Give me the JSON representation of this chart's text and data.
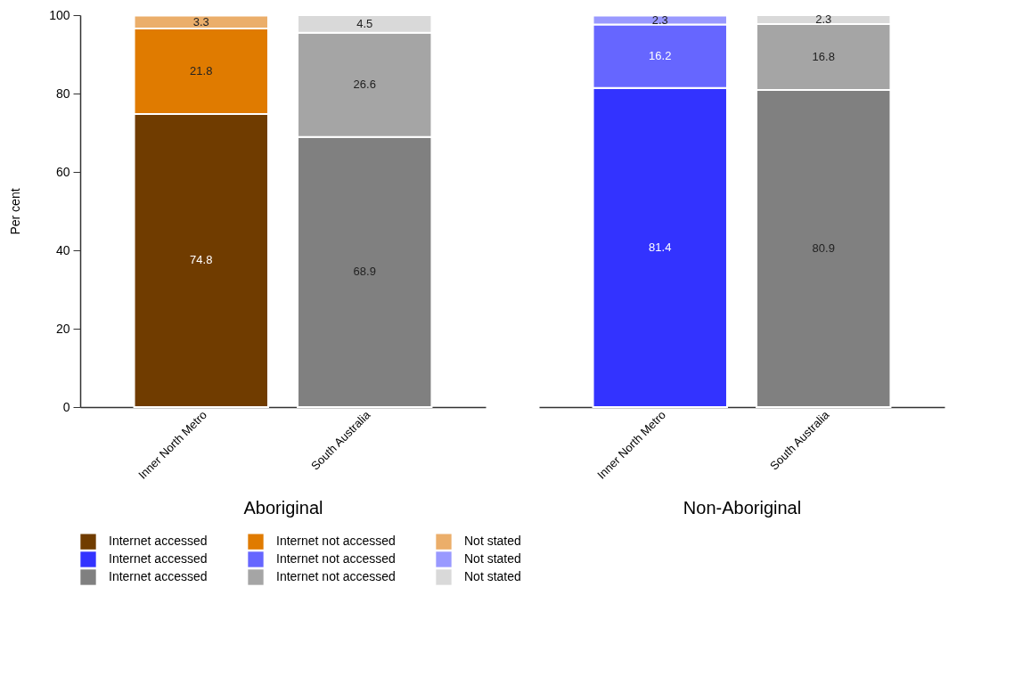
{
  "chart_data": [
    {
      "type": "bar",
      "stacked": true,
      "categories": [
        "Inner North Metro",
        "South Australia"
      ],
      "xlabel": "Aboriginal",
      "ylabel": "Per cent",
      "ylim": [
        0,
        100
      ],
      "yticks": [
        0,
        20,
        40,
        60,
        80,
        100
      ],
      "grid": false,
      "legend": "bottom",
      "data_labels": true,
      "series": [
        {
          "name": "Internet accessed",
          "color": "#703c00",
          "values": [
            74.8,
            null
          ]
        },
        {
          "name": "Internet not accessed",
          "color": "#e07b00",
          "values": [
            21.8,
            null
          ]
        },
        {
          "name": "Not stated",
          "color": "#ebae6a",
          "values": [
            3.3,
            null
          ]
        },
        {
          "name": "Internet accessed",
          "color": "#808080",
          "values": [
            null,
            68.9
          ]
        },
        {
          "name": "Internet not accessed",
          "color": "#a5a5a5",
          "values": [
            null,
            26.6
          ]
        },
        {
          "name": "Not stated",
          "color": "#d9d9d9",
          "values": [
            null,
            4.5
          ]
        }
      ]
    },
    {
      "type": "bar",
      "stacked": true,
      "categories": [
        "Inner North Metro",
        "South Australia"
      ],
      "xlabel": "Non-Aboriginal",
      "ylim": [
        0,
        100
      ],
      "yticks": [
        0,
        20,
        40,
        60,
        80,
        100
      ],
      "grid": false,
      "legend": "bottom",
      "data_labels": true,
      "tick_labels": "x",
      "series": [
        {
          "name": "Internet accessed",
          "color": "#3333ff",
          "values": [
            81.4,
            null
          ]
        },
        {
          "name": "Internet not accessed",
          "color": "#6666ff",
          "values": [
            16.2,
            null
          ]
        },
        {
          "name": "Not stated",
          "color": "#9999ff",
          "values": [
            2.3,
            null
          ]
        },
        {
          "name": "Internet accessed",
          "color": "#808080",
          "values": [
            null,
            80.9
          ]
        },
        {
          "name": "Internet not accessed",
          "color": "#a5a5a5",
          "values": [
            null,
            16.8
          ]
        },
        {
          "name": "Not stated",
          "color": "#d9d9d9",
          "values": [
            null,
            2.3
          ]
        }
      ]
    }
  ]
}
